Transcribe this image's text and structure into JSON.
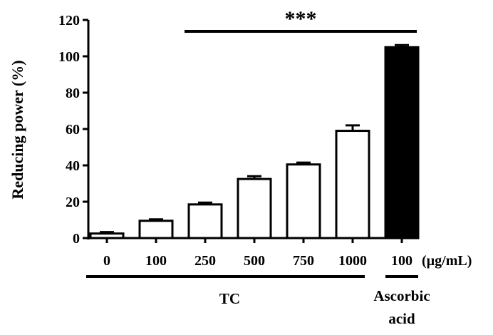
{
  "chart_data": {
    "type": "bar",
    "title": "",
    "xlabel": "",
    "ylabel": "Reducing power (%)",
    "ylim": [
      0,
      120
    ],
    "yticks": [
      0,
      20,
      40,
      60,
      80,
      100,
      120
    ],
    "x_unit": "(µg/mL)",
    "categories": [
      "0",
      "100",
      "250",
      "500",
      "750",
      "1000",
      "100"
    ],
    "values": [
      2.5,
      9.5,
      18.5,
      32.5,
      40.5,
      59,
      105
    ],
    "errors": [
      0.8,
      0.8,
      1.0,
      1.5,
      1.0,
      3.0,
      1.2
    ],
    "bar_fills": [
      "#ffffff",
      "#ffffff",
      "#ffffff",
      "#ffffff",
      "#ffffff",
      "#ffffff",
      "#000000"
    ],
    "groups": [
      {
        "label": "TC",
        "from": 0,
        "to": 5
      },
      {
        "label": "Ascorbic acid",
        "from": 6,
        "to": 6
      }
    ],
    "significance": {
      "label": "***",
      "from": 2,
      "to": 6
    },
    "grid": false,
    "legend": "none"
  }
}
